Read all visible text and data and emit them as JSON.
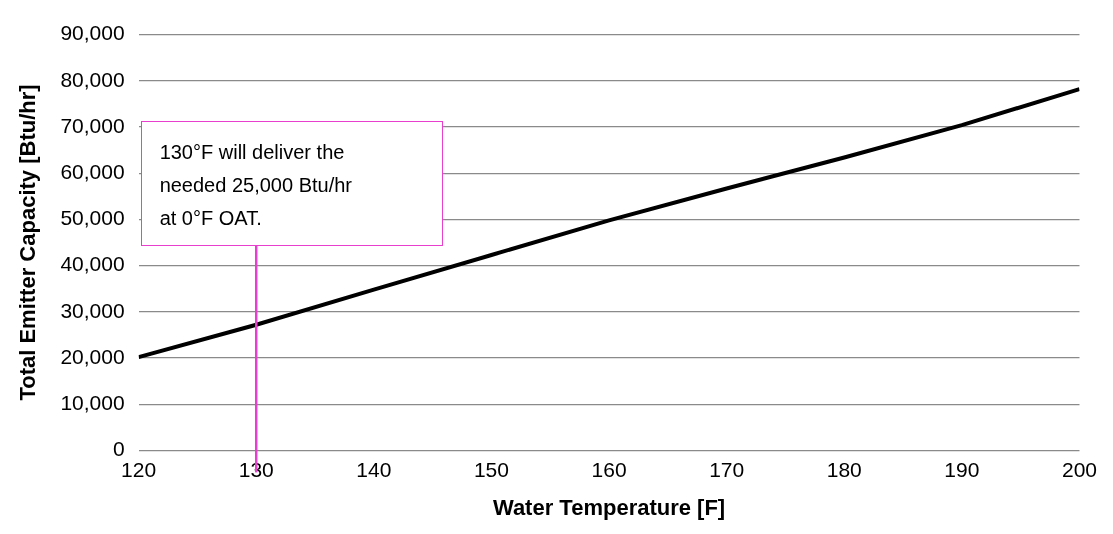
{
  "chart_data": {
    "type": "line",
    "xlabel": "Water Temperature [F]",
    "ylabel": "Total Emitter Capacity [Btu/hr]",
    "x": [
      120,
      130,
      140,
      150,
      160,
      170,
      180,
      190,
      200
    ],
    "series": [
      {
        "color": "#000000",
        "values": [
          20200,
          27200,
          34800,
          42300,
          49800,
          56700,
          63400,
          70400,
          78200
        ]
      }
    ],
    "xlim": [
      120,
      200
    ],
    "xticks": [
      120,
      130,
      140,
      150,
      160,
      170,
      180,
      190,
      200
    ],
    "ylim": [
      0,
      90000
    ],
    "yticks": [
      0,
      {
        "value": 10000,
        "label": "10,000"
      },
      {
        "value": 20000,
        "label": "20,000"
      },
      {
        "value": 30000,
        "label": "30,000"
      },
      {
        "value": 40000,
        "label": "40,000"
      },
      {
        "value": 50000,
        "label": "50,000"
      },
      {
        "value": 60000,
        "label": "60,000"
      },
      {
        "value": 70000,
        "label": "70,000"
      },
      {
        "value": 80000,
        "label": "80,000"
      },
      {
        "value": 90000,
        "label": "90,000"
      }
    ],
    "grid": "y",
    "legend": false,
    "marker": "none",
    "line_style": "solid",
    "ref_lines": [
      {
        "axis": "x",
        "value": 130,
        "color": "#e83fcf"
      }
    ],
    "annotations": [
      "130°F will deliver the\nneeded 25,000 Btu/hr\nat 0°F OAT."
    ]
  }
}
